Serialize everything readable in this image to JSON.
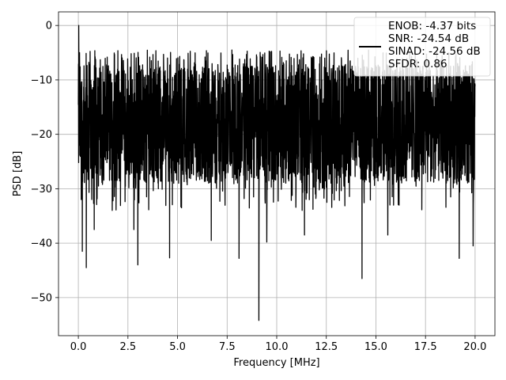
{
  "chart_data": {
    "type": "line",
    "title": "",
    "xlabel": "Frequency [MHz]",
    "ylabel": "PSD [dB]",
    "xlim": [
      -1.0,
      21.0
    ],
    "ylim": [
      -57,
      2.5
    ],
    "xticks": [
      0.0,
      2.5,
      5.0,
      7.5,
      10.0,
      12.5,
      15.0,
      17.5,
      20.0
    ],
    "xtick_labels": [
      "0.0",
      "2.5",
      "5.0",
      "7.5",
      "10.0",
      "12.5",
      "15.0",
      "17.5",
      "20.0"
    ],
    "yticks": [
      0,
      -10,
      -20,
      -30,
      -40,
      -50
    ],
    "ytick_labels": [
      "0",
      "−10",
      "−20",
      "−30",
      "−40",
      "−50"
    ],
    "grid": true,
    "legend_position": "top-right",
    "legend": {
      "lines": [
        "ENOB: -4.37 bits",
        "SNR: -24.54 dB",
        "SINAD: -24.56 dB",
        "SFDR: 0.86"
      ]
    },
    "series": [
      {
        "color": "#000000",
        "noise_floor_db": -18,
        "upper_envelope_db": -6,
        "x_range": [
          0.0,
          20.0
        ],
        "peaks": [
          {
            "x": 0.02,
            "y": 0
          },
          {
            "x": 0.06,
            "y": -5
          },
          {
            "x": 0.2,
            "y": -41.5
          },
          {
            "x": 0.4,
            "y": -44.5
          },
          {
            "x": 0.8,
            "y": -37.5
          },
          {
            "x": 2.8,
            "y": -37.5
          },
          {
            "x": 3.0,
            "y": -44
          },
          {
            "x": 4.6,
            "y": -42.7
          },
          {
            "x": 6.7,
            "y": -39.5
          },
          {
            "x": 8.1,
            "y": -42.8
          },
          {
            "x": 9.1,
            "y": -54.2
          },
          {
            "x": 9.5,
            "y": -39.8
          },
          {
            "x": 11.4,
            "y": -38.5
          },
          {
            "x": 14.3,
            "y": -46.5
          },
          {
            "x": 15.6,
            "y": -38.5
          },
          {
            "x": 19.2,
            "y": -42.8
          },
          {
            "x": 19.9,
            "y": -40.5
          }
        ]
      }
    ]
  }
}
